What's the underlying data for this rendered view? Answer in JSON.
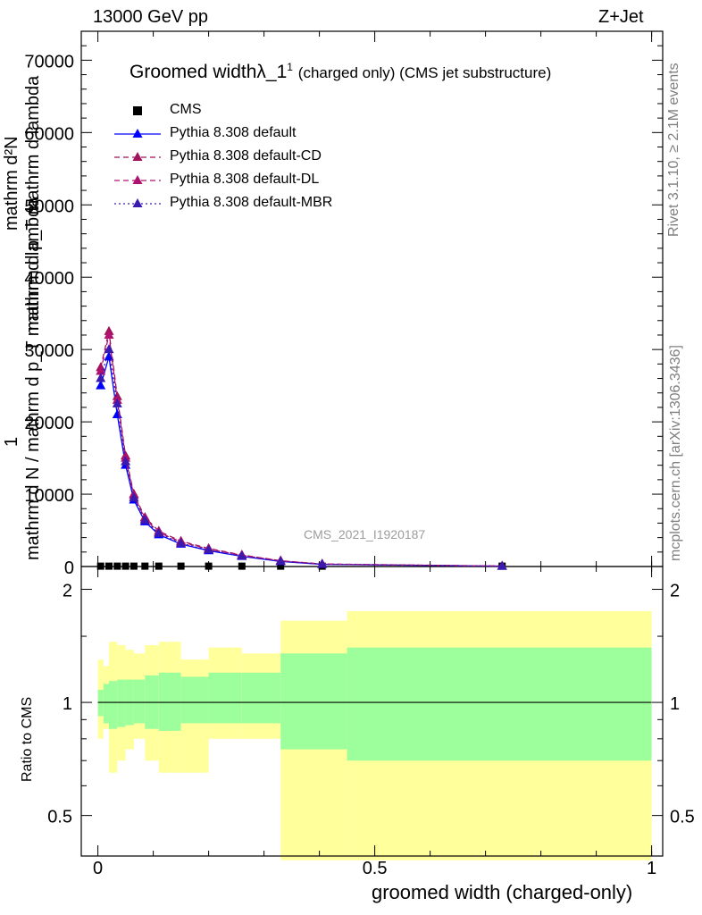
{
  "header": {
    "energy": "13000 GeV pp",
    "process": "Z+Jet"
  },
  "plot_title": {
    "main": "Groomed width",
    "lambda": "λ_1",
    "sup": "1",
    "sub": "(charged only) (CMS jet substructure)"
  },
  "side_labels": {
    "rivet": "Rivet 3.1.10, ≥ 2.1M events",
    "mcplots": "mcplots.cern.ch [arXiv:1306.3436]"
  },
  "watermark": "CMS_2021_I1920187",
  "y_label_main": {
    "num_1": "mathrm d²N",
    "num_2": "mathrm d p_T mathrm d lambda",
    "one": "1",
    "den": "mathrm d N / mathrm d p_T mathrm d lambda"
  },
  "y_label_ratio": "Ratio to CMS",
  "x_label": "groomed width (charged-only)",
  "legend": [
    {
      "label": "CMS",
      "color": "#000000",
      "marker": "square",
      "line": "none"
    },
    {
      "label": "Pythia 8.308 default",
      "color": "#0000ff",
      "marker": "triangle",
      "line": "solid"
    },
    {
      "label": "Pythia 8.308 default-CD",
      "color": "#a0125a",
      "marker": "triangle",
      "line": "dashed"
    },
    {
      "label": "Pythia 8.308 default-DL",
      "color": "#b01070",
      "marker": "triangle",
      "line": "dashed"
    },
    {
      "label": "Pythia 8.308 default-MBR",
      "color": "#3b1ab0",
      "marker": "triangle",
      "line": "dotted"
    }
  ],
  "colors": {
    "band_outer": "#ffff9c",
    "band_inner": "#9cff9c"
  },
  "chart_data": {
    "type": "line",
    "x": [
      0.005,
      0.02,
      0.035,
      0.05,
      0.065,
      0.085,
      0.11,
      0.15,
      0.2,
      0.26,
      0.33,
      0.405,
      0.73
    ],
    "series": [
      {
        "name": "CMS",
        "values": [
          50,
          50,
          50,
          50,
          50,
          50,
          50,
          50,
          50,
          50,
          50,
          50,
          50
        ]
      },
      {
        "name": "Pythia 8.308 default",
        "values": [
          25000,
          29000,
          21000,
          14000,
          9200,
          6200,
          4400,
          3100,
          2200,
          1400,
          700,
          300,
          50
        ]
      },
      {
        "name": "Pythia 8.308 default-CD",
        "values": [
          27500,
          32500,
          23500,
          15300,
          10000,
          6800,
          4900,
          3500,
          2500,
          1600,
          800,
          350,
          60
        ]
      },
      {
        "name": "Pythia 8.308 default-DL",
        "values": [
          27000,
          32000,
          23000,
          15000,
          9800,
          6600,
          4700,
          3400,
          2400,
          1550,
          780,
          340,
          60
        ]
      },
      {
        "name": "Pythia 8.308 default-MBR",
        "values": [
          26000,
          30000,
          22500,
          14500,
          9500,
          6400,
          4600,
          3200,
          2300,
          1450,
          720,
          320,
          50
        ]
      }
    ],
    "xlim": [
      -0.03,
      1.02
    ],
    "ylim": [
      0,
      74000
    ],
    "y_ticks": [
      0,
      10000,
      20000,
      30000,
      40000,
      50000,
      60000,
      70000
    ],
    "x_ticks": [
      0,
      0.5,
      1
    ],
    "ratio": {
      "ylim": [
        0.39,
        2.3
      ],
      "y_ticks": [
        0.5,
        1,
        2
      ],
      "edges": [
        0,
        0.01,
        0.02,
        0.035,
        0.05,
        0.065,
        0.085,
        0.11,
        0.15,
        0.2,
        0.26,
        0.33,
        0.45,
        1.0
      ],
      "outer_lo": [
        0.8,
        0.85,
        0.65,
        0.7,
        0.75,
        0.8,
        0.7,
        0.65,
        0.65,
        0.8,
        0.8,
        0.38,
        0.38
      ],
      "outer_hi": [
        1.3,
        1.25,
        1.45,
        1.42,
        1.38,
        1.35,
        1.42,
        1.45,
        1.3,
        1.4,
        1.35,
        1.65,
        1.75
      ],
      "inner_lo": [
        0.92,
        0.88,
        0.85,
        0.86,
        0.87,
        0.88,
        0.85,
        0.84,
        0.88,
        0.88,
        0.88,
        0.75,
        0.7
      ],
      "inner_hi": [
        1.08,
        1.12,
        1.14,
        1.15,
        1.15,
        1.15,
        1.18,
        1.2,
        1.17,
        1.2,
        1.2,
        1.35,
        1.4
      ]
    }
  }
}
